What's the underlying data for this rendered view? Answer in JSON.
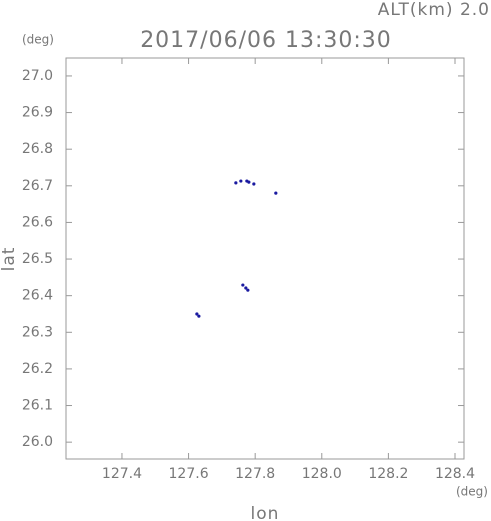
{
  "chart_data": {
    "type": "scatter",
    "title": "2017/06/06 13:30:30",
    "subtitle": "ALT(km) 2.0",
    "y_unit": "(deg)",
    "x_unit": "(deg)",
    "xlabel": "lon",
    "ylabel": "lat",
    "x": [
      127.742,
      127.757,
      127.775,
      127.781,
      127.796,
      127.862,
      127.763,
      127.772,
      127.778,
      127.625,
      127.631
    ],
    "values": [
      26.708,
      26.713,
      26.713,
      26.71,
      26.705,
      26.68,
      26.429,
      26.421,
      26.415,
      26.35,
      26.344
    ],
    "color": "#1a1aa0",
    "xlim": [
      127.232,
      128.427
    ],
    "ylim": [
      25.954,
      27.049
    ],
    "xticks": [
      127.4,
      127.6,
      127.8,
      {
        "value": 128,
        "label": "128.0"
      },
      128.2,
      128.4
    ],
    "yticks": [
      {
        "value": 26,
        "label": "26.0"
      },
      26.1,
      26.2,
      26.3,
      26.4,
      26.5,
      26.6,
      26.7,
      26.8,
      26.9,
      {
        "value": 27,
        "label": "27.0"
      }
    ],
    "grid": false
  }
}
